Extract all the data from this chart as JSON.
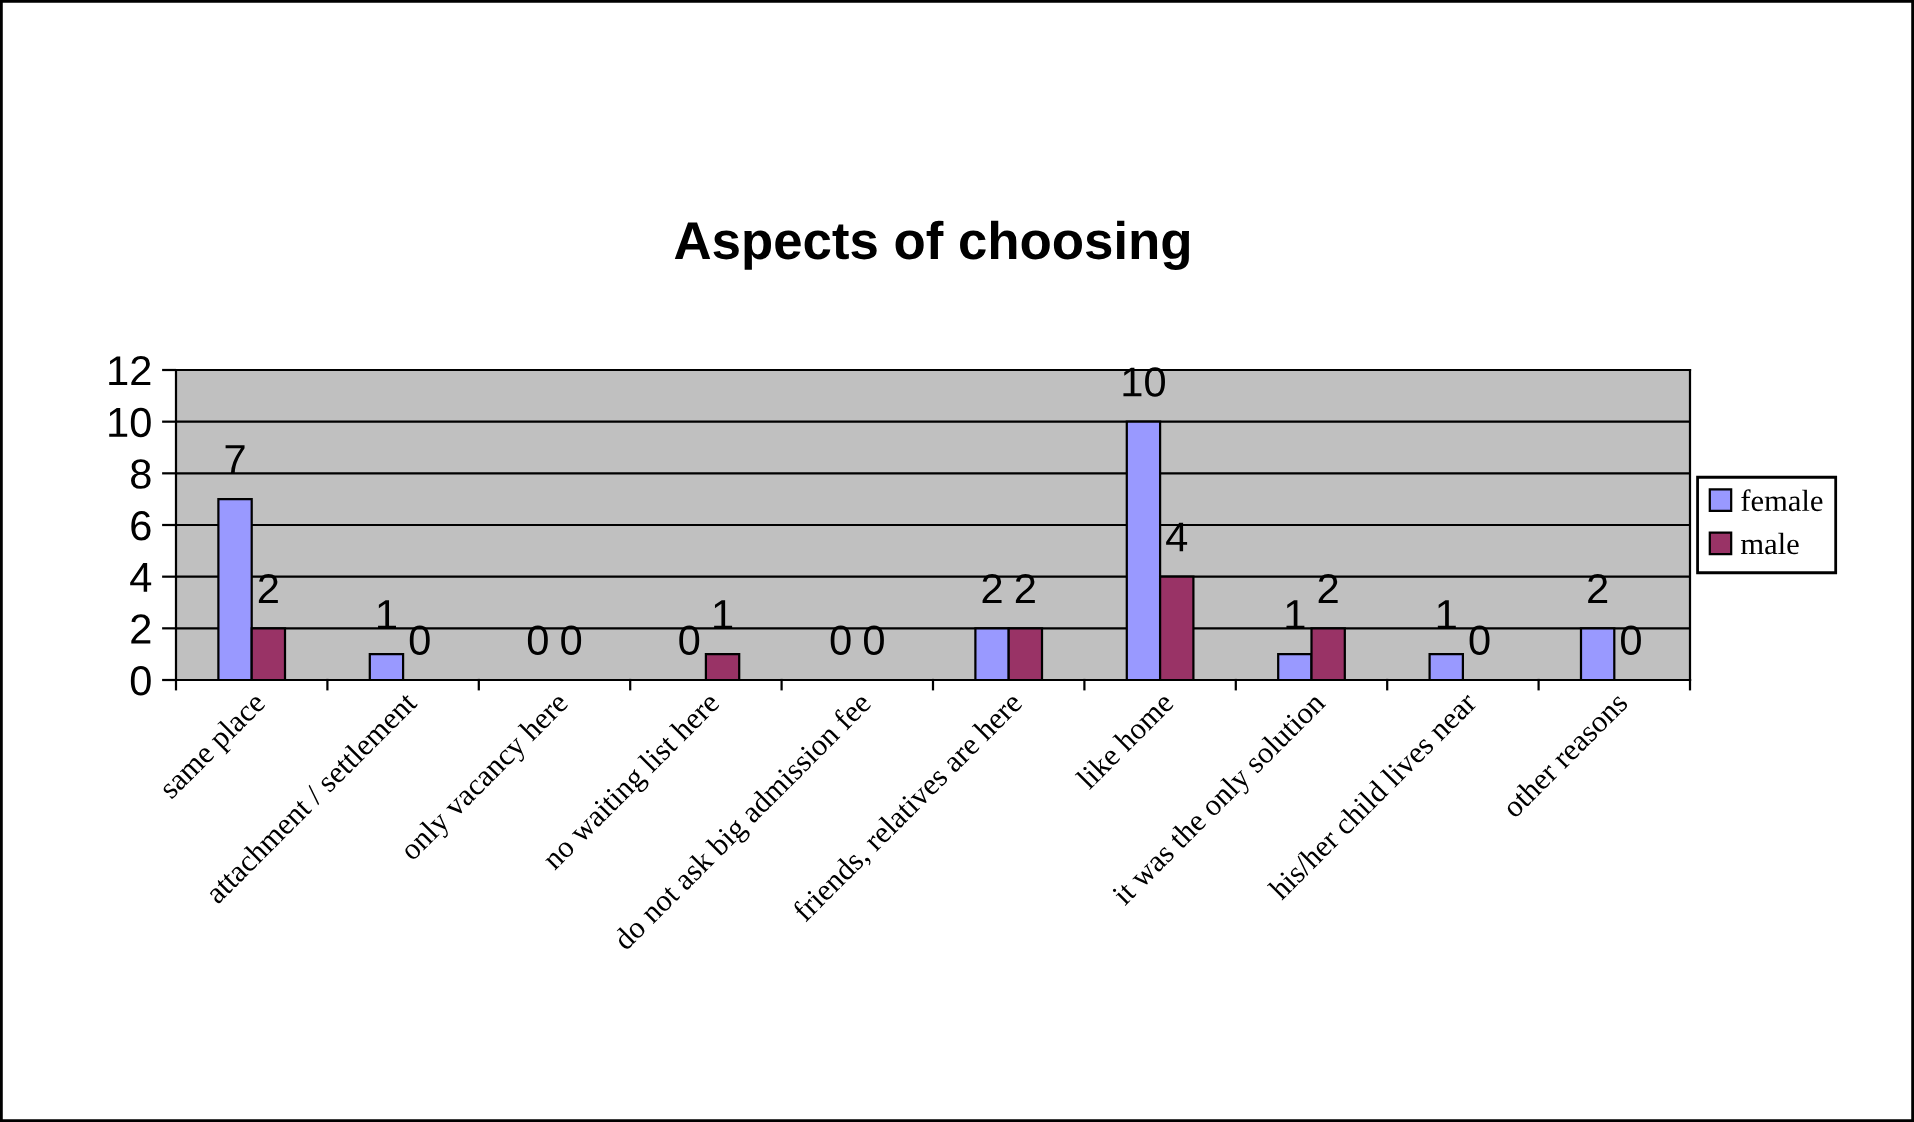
{
  "chart_data": {
    "type": "bar",
    "title": "Aspects of choosing",
    "categories": [
      "same place",
      "attachment / settlement",
      "only vacancy here",
      "no waiting list here",
      "do not ask big admission fee",
      "friends, relatives are here",
      "like home",
      "it was the only solution",
      "his/her child lives near",
      "other reasons"
    ],
    "series": [
      {
        "name": "female",
        "color": "#9999ff",
        "values": [
          7,
          1,
          0,
          0,
          0,
          2,
          10,
          1,
          1,
          2
        ]
      },
      {
        "name": "male",
        "color": "#993366",
        "values": [
          2,
          0,
          0,
          1,
          0,
          2,
          4,
          2,
          0,
          0
        ]
      }
    ],
    "ylim": [
      0,
      12
    ],
    "yticks": [
      0,
      2,
      4,
      6,
      8,
      10,
      12
    ],
    "grid": "y",
    "legend": "right",
    "data_labels": true
  }
}
